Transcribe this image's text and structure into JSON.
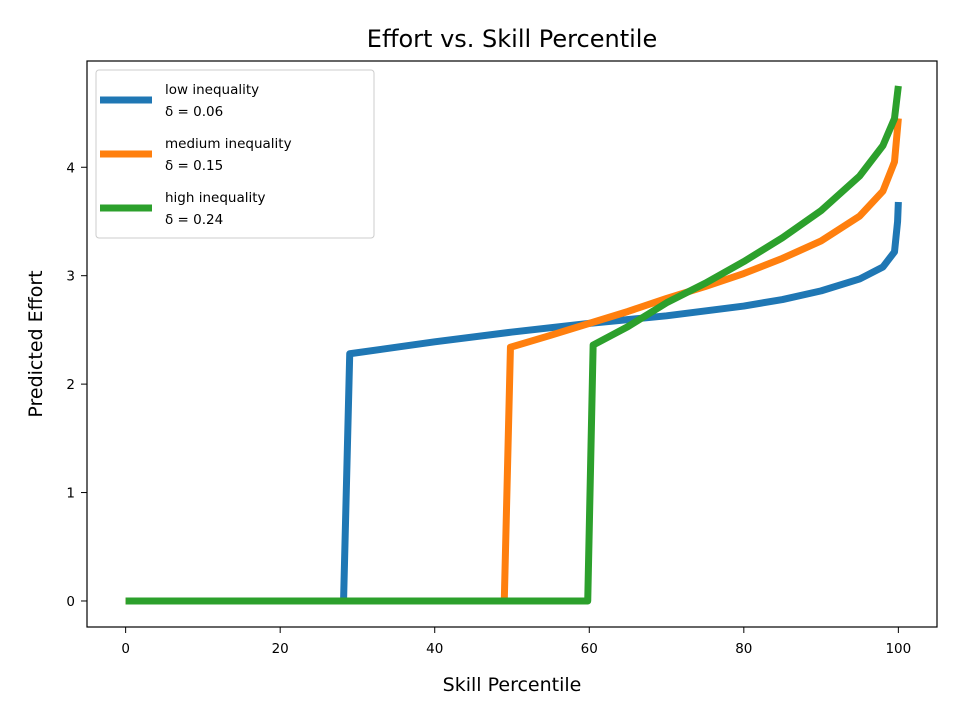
{
  "chart_data": {
    "type": "line",
    "title": "Effort vs. Skill Percentile",
    "xlabel": "Skill Percentile",
    "ylabel": "Predicted Effort",
    "xlim": [
      -5,
      105
    ],
    "ylim": [
      -0.24,
      4.98
    ],
    "xticks": [
      0,
      20,
      40,
      60,
      80,
      100
    ],
    "yticks": [
      0,
      1,
      2,
      3,
      4
    ],
    "grid": false,
    "legend_position": "upper left",
    "series": [
      {
        "name": "low inequality",
        "delta_label": "δ = 0.06",
        "color": "#1f77b4",
        "points": [
          [
            0,
            0
          ],
          [
            28.2,
            0
          ],
          [
            29.0,
            2.28
          ],
          [
            40,
            2.39
          ],
          [
            50,
            2.48
          ],
          [
            60,
            2.56
          ],
          [
            70,
            2.63
          ],
          [
            80,
            2.72
          ],
          [
            85,
            2.78
          ],
          [
            90,
            2.86
          ],
          [
            95,
            2.97
          ],
          [
            98,
            3.08
          ],
          [
            99.5,
            3.22
          ],
          [
            99.9,
            3.5
          ],
          [
            100,
            3.68
          ]
        ]
      },
      {
        "name": "medium inequality",
        "delta_label": "δ = 0.15",
        "color": "#ff7f0e",
        "points": [
          [
            0,
            0
          ],
          [
            49.0,
            0
          ],
          [
            49.8,
            2.34
          ],
          [
            55,
            2.45
          ],
          [
            60,
            2.56
          ],
          [
            65,
            2.67
          ],
          [
            70,
            2.79
          ],
          [
            75,
            2.9
          ],
          [
            80,
            3.02
          ],
          [
            85,
            3.16
          ],
          [
            90,
            3.32
          ],
          [
            95,
            3.55
          ],
          [
            98,
            3.78
          ],
          [
            99.5,
            4.05
          ],
          [
            100,
            4.45
          ]
        ]
      },
      {
        "name": "high inequality",
        "delta_label": "δ = 0.24",
        "color": "#2ca02c",
        "points": [
          [
            0,
            0
          ],
          [
            59.8,
            0
          ],
          [
            60.5,
            2.36
          ],
          [
            65,
            2.53
          ],
          [
            70,
            2.75
          ],
          [
            75,
            2.93
          ],
          [
            80,
            3.13
          ],
          [
            85,
            3.35
          ],
          [
            90,
            3.6
          ],
          [
            95,
            3.92
          ],
          [
            98,
            4.2
          ],
          [
            99.5,
            4.45
          ],
          [
            100,
            4.75
          ]
        ]
      }
    ]
  }
}
